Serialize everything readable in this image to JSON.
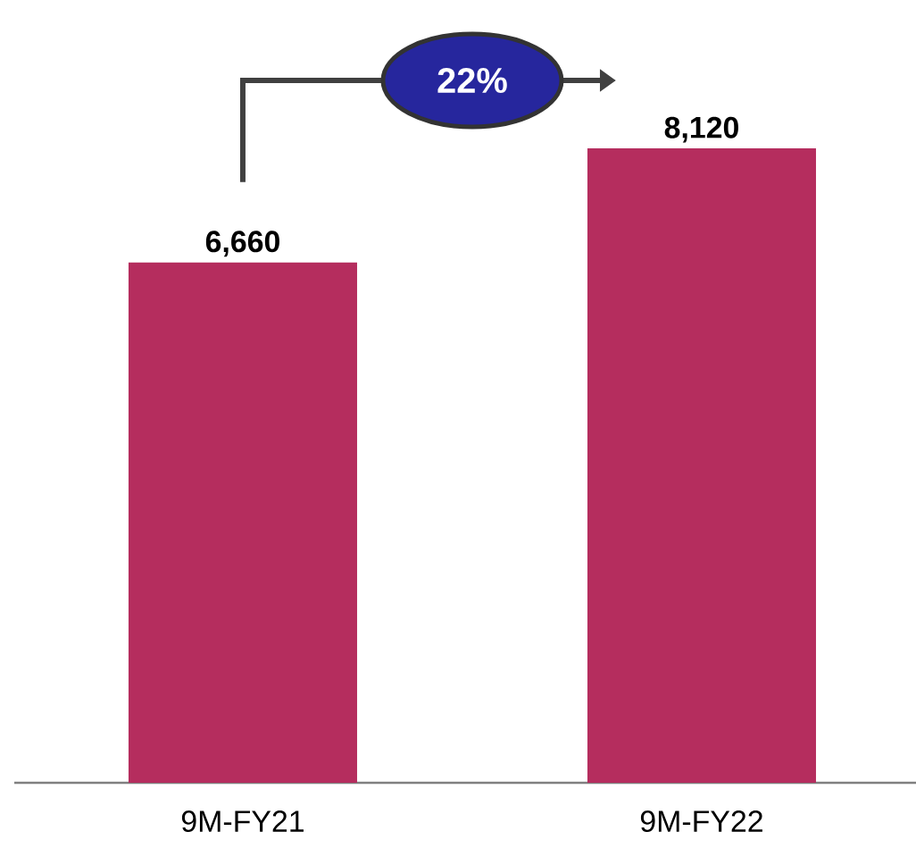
{
  "chart_data": {
    "type": "bar",
    "categories": [
      "9M-FY21",
      "9M-FY22"
    ],
    "values": [
      6660,
      8120
    ],
    "value_labels": [
      "6,660",
      "8,120"
    ],
    "color": "#b52d5e",
    "annotations": [
      "22%"
    ]
  }
}
